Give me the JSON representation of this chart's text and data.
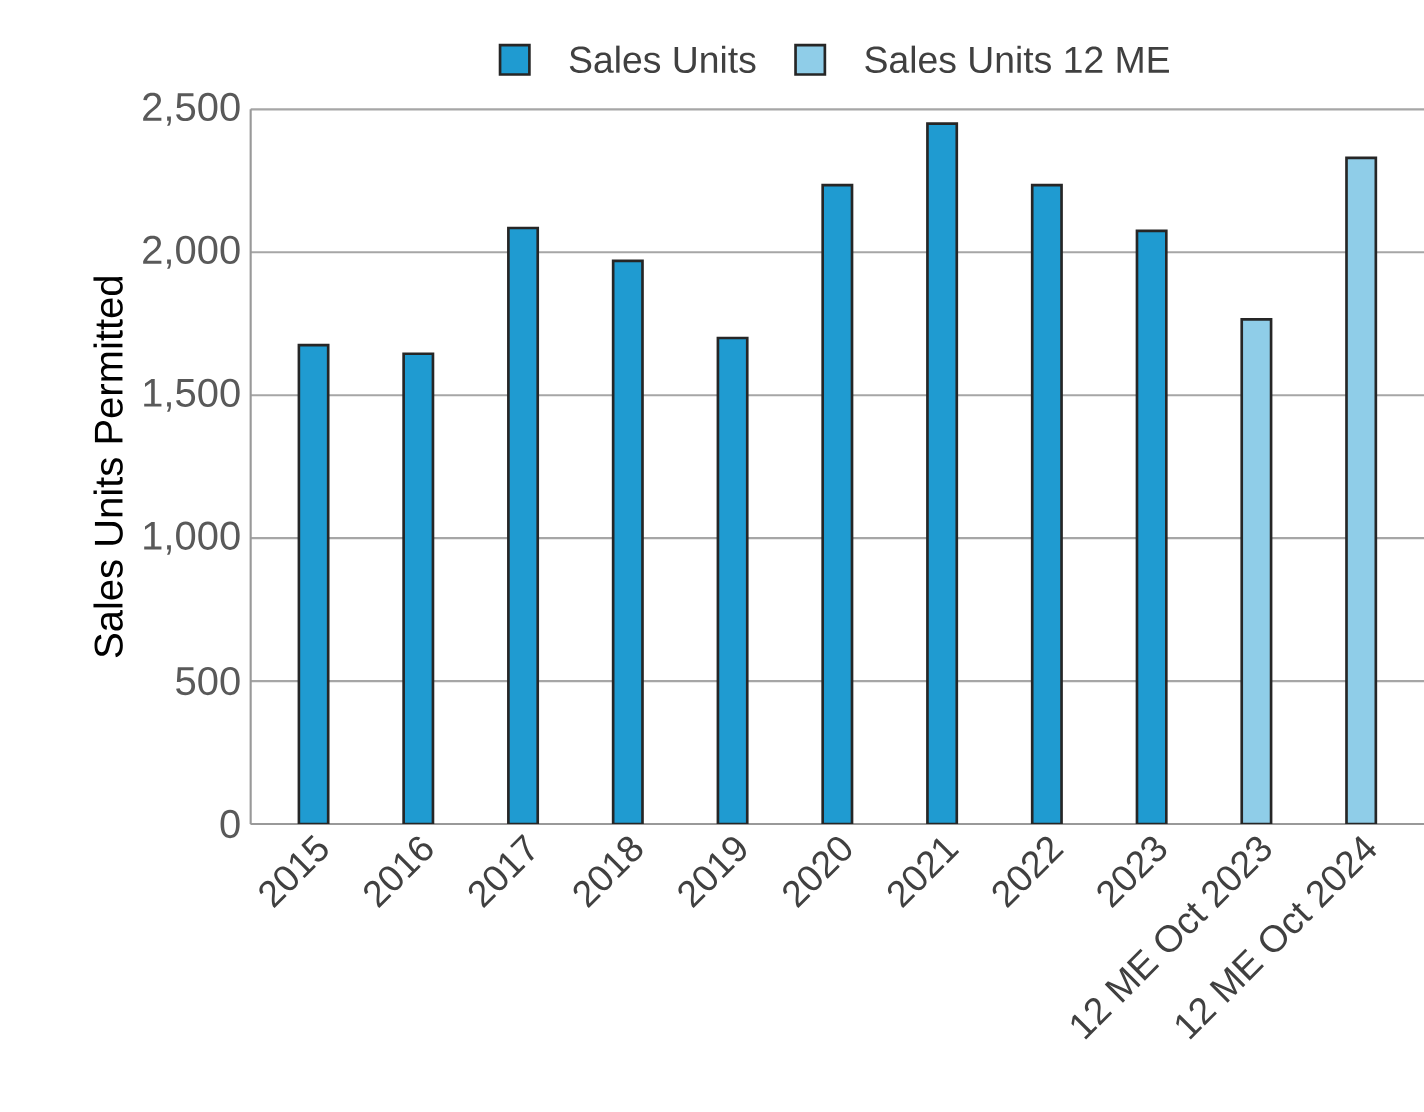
{
  "chart_data": {
    "type": "bar",
    "ylabel": "Sales Units Permitted",
    "categories": [
      "2015",
      "2016",
      "2017",
      "2018",
      "2019",
      "2020",
      "2021",
      "2022",
      "2023",
      "12 ME Oct 2023",
      "12 ME Oct 2024"
    ],
    "series": [
      {
        "name": "Sales Units",
        "color": "#1f9bd1",
        "values": [
          1675,
          1645,
          2085,
          1970,
          1700,
          2235,
          2450,
          2235,
          2075,
          null,
          null
        ]
      },
      {
        "name": "Sales Units 12 ME",
        "color": "#8fcde8",
        "values": [
          null,
          null,
          null,
          null,
          null,
          null,
          null,
          null,
          null,
          1765,
          2330
        ]
      }
    ],
    "ylim": [
      0,
      2500
    ],
    "yticks": [
      0,
      500,
      {
        "value": 1000,
        "label": "1,000"
      },
      {
        "value": 1500,
        "label": "1,500"
      },
      {
        "value": 2000,
        "label": "2,000"
      },
      {
        "value": 2500,
        "label": "2,500"
      }
    ],
    "grid": "y",
    "legend": "top"
  }
}
